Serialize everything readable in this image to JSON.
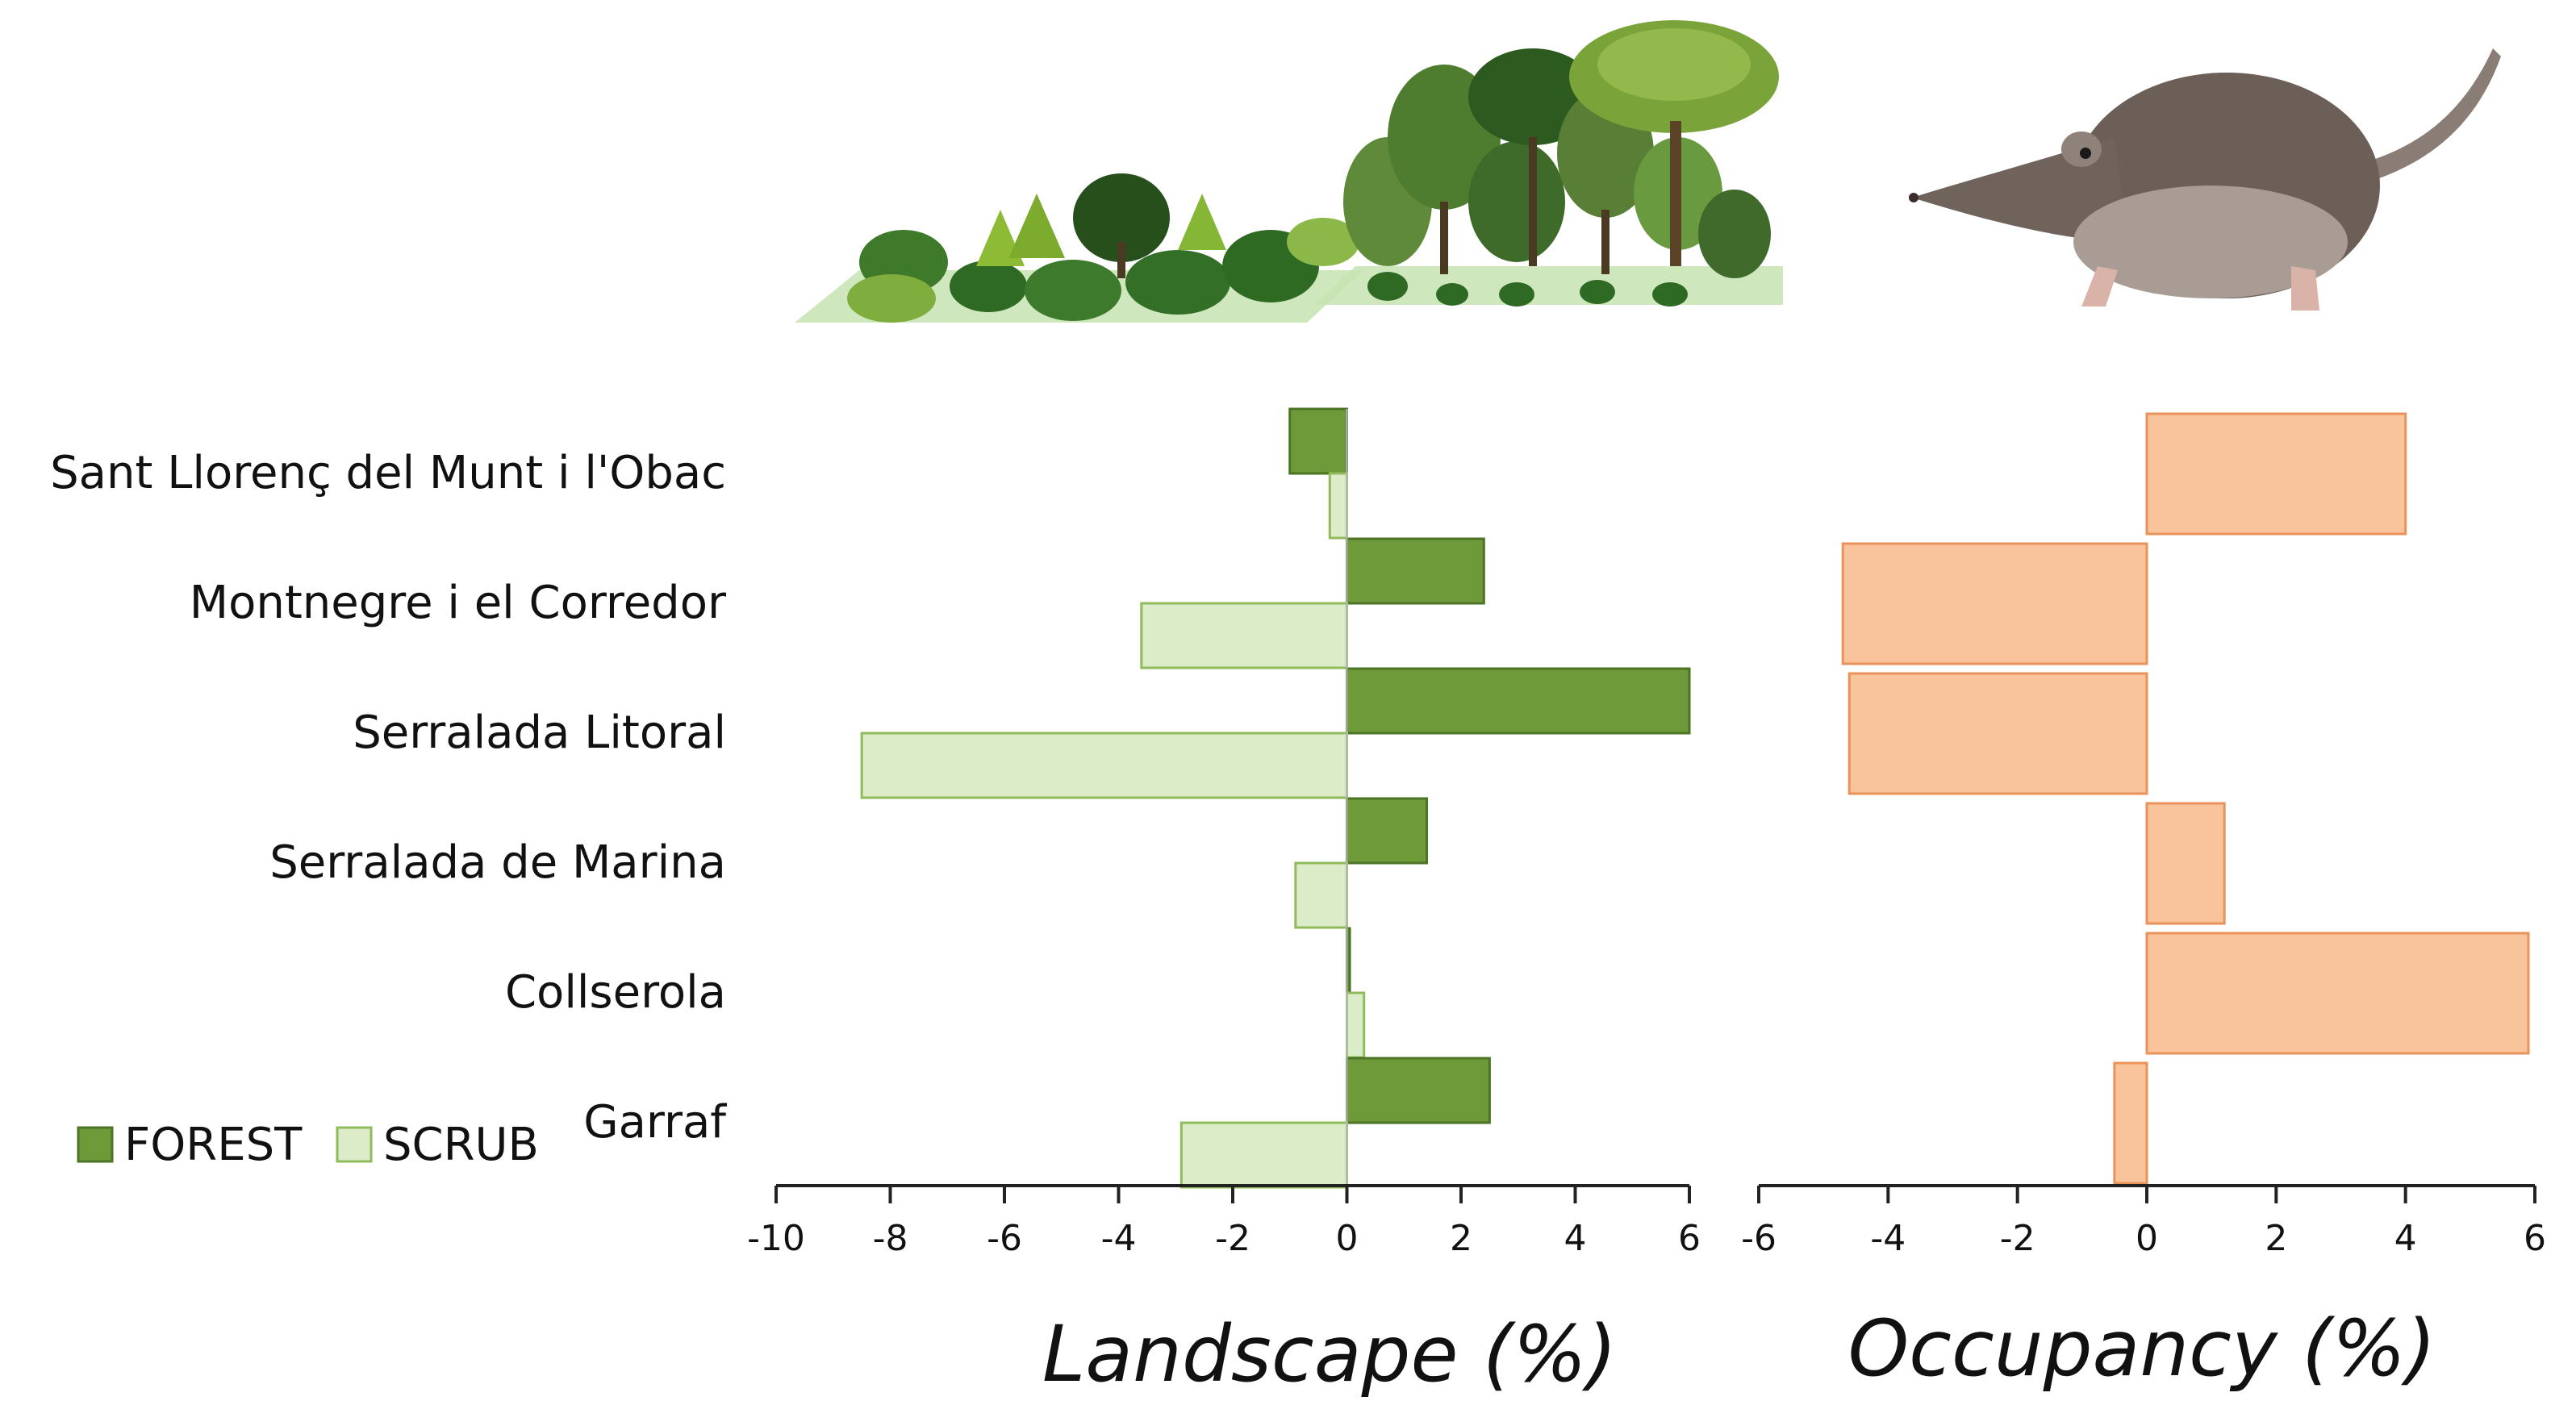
{
  "colors": {
    "forest_fill": "#6f9a3a",
    "forest_stroke": "#4d7424",
    "scrub_fill": "#dcebc8",
    "scrub_stroke": "#8fbb5c",
    "occupancy_fill": "#f9c49b",
    "occupancy_stroke": "#e9925a",
    "axis": "#222222"
  },
  "illustrations": {
    "vegetation": "scrub-and-forest-illustration",
    "animal": "shrew-illustration"
  },
  "chart_data": [
    {
      "type": "bar",
      "orientation": "horizontal",
      "categories": [
        "Sant Llorenç del Munt i l'Obac",
        "Montnegre i el Corredor",
        "Serralada Litoral",
        "Serralada de Marina",
        "Collserola",
        "Garraf"
      ],
      "series": [
        {
          "name": "FOREST",
          "values": [
            -1.0,
            2.4,
            6.0,
            1.4,
            0.05,
            2.5
          ]
        },
        {
          "name": "SCRUB",
          "values": [
            -0.3,
            -3.6,
            -8.5,
            -0.9,
            0.3,
            -2.9
          ]
        }
      ],
      "xlabel": "Landscape (%)",
      "ylabel": "",
      "xlim": [
        -10,
        6
      ],
      "xticks": [
        "-10",
        "-8",
        "-6",
        "-4",
        "-2",
        "0",
        "2",
        "4",
        "6"
      ],
      "legend": {
        "placement": "bottom-left",
        "entries": [
          "FOREST",
          "SCRUB"
        ]
      },
      "grid": false
    },
    {
      "type": "bar",
      "orientation": "horizontal",
      "categories": [
        "Sant Llorenç del Munt i l'Obac",
        "Montnegre i el Corredor",
        "Serralada Litoral",
        "Serralada de Marina",
        "Collserola",
        "Garraf"
      ],
      "series": [
        {
          "values": [
            4.0,
            -4.7,
            -4.6,
            1.2,
            5.9,
            -0.5
          ]
        }
      ],
      "xlabel": "Occupancy (%)",
      "ylabel": "",
      "xlim": [
        -6,
        6
      ],
      "xticks": [
        "-6",
        "-4",
        "-2",
        "0",
        "2",
        "4",
        "6"
      ],
      "grid": false
    }
  ]
}
